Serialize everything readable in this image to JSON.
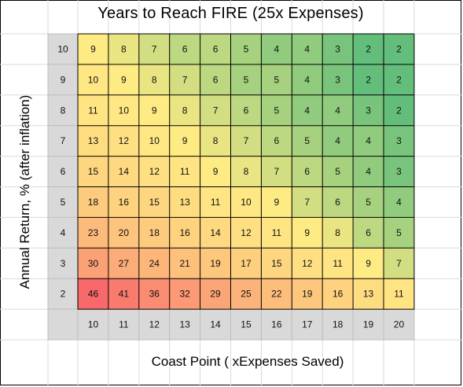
{
  "chart_data": {
    "type": "heatmap",
    "title": "Years to Reach FIRE (25x Expenses)",
    "xlabel": "Coast Point ( xExpenses Saved)",
    "ylabel": "Annual Return, % (after inflation)",
    "x": [
      10,
      11,
      12,
      13,
      14,
      15,
      16,
      17,
      18,
      19,
      20
    ],
    "y": [
      10,
      9,
      8,
      7,
      6,
      5,
      4,
      3,
      2
    ],
    "values": [
      [
        9,
        8,
        7,
        6,
        6,
        5,
        4,
        4,
        3,
        2,
        2
      ],
      [
        10,
        9,
        8,
        7,
        6,
        5,
        5,
        4,
        3,
        2,
        2
      ],
      [
        11,
        10,
        9,
        8,
        7,
        6,
        5,
        4,
        4,
        3,
        2
      ],
      [
        13,
        12,
        10,
        9,
        8,
        7,
        6,
        5,
        4,
        4,
        3
      ],
      [
        15,
        14,
        12,
        11,
        9,
        8,
        7,
        6,
        5,
        4,
        3
      ],
      [
        18,
        16,
        15,
        13,
        11,
        10,
        9,
        7,
        6,
        5,
        4
      ],
      [
        23,
        20,
        18,
        16,
        14,
        12,
        11,
        9,
        8,
        6,
        5
      ],
      [
        30,
        27,
        24,
        21,
        19,
        17,
        15,
        12,
        11,
        9,
        7
      ],
      [
        46,
        41,
        36,
        32,
        29,
        25,
        22,
        19,
        16,
        13,
        11
      ]
    ],
    "color_scale": {
      "low": "#63be7b",
      "mid": "#ffeb84",
      "high": "#f8696b"
    },
    "header_fill": "#d9d9d9",
    "legend": "none",
    "grid": true
  }
}
